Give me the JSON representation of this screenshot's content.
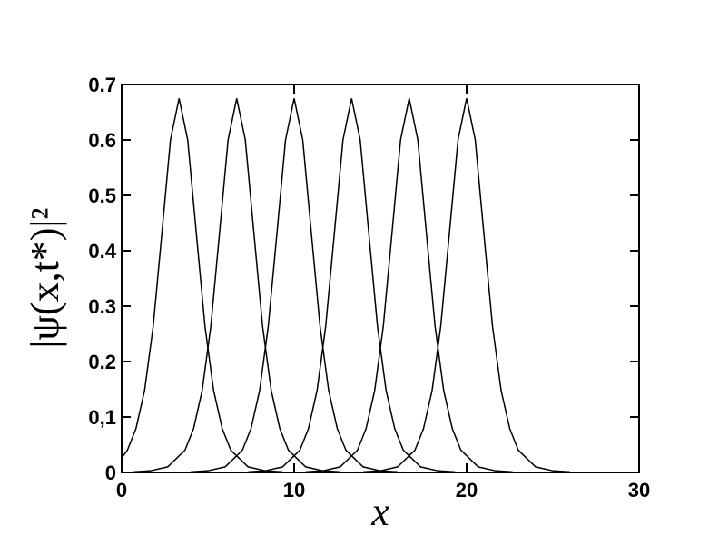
{
  "chart_data": {
    "type": "line",
    "xlabel": "x",
    "ylabel": "|ψ(x,t*)|²",
    "xlim": [
      0,
      30
    ],
    "ylim": [
      0,
      0.7
    ],
    "xticks": [
      0,
      10,
      20,
      30
    ],
    "yticks": [
      0,
      {
        "value": 0.1,
        "label": "0,1"
      },
      0.2,
      0.3,
      0.4,
      0.5,
      0.6,
      0.7
    ],
    "grid": false,
    "series": [
      {
        "color": "#000000",
        "x": [
          0,
          0.33,
          0.83,
          1.33,
          1.83,
          2.33,
          2.83,
          3.33,
          3.83,
          4.33,
          4.83,
          5.33,
          5.83,
          6.33,
          7.33,
          8.33,
          9.33
        ],
        "values": [
          0.026,
          0.04,
          0.079,
          0.148,
          0.264,
          0.431,
          0.6,
          0.675,
          0.6,
          0.431,
          0.264,
          0.148,
          0.079,
          0.04,
          0.01,
          0.003,
          0.001
        ]
      },
      {
        "color": "#000000",
        "x": [
          0.67,
          1.67,
          2.67,
          3.67,
          4.17,
          4.67,
          5.17,
          5.67,
          6.17,
          6.67,
          7.17,
          7.67,
          8.17,
          8.67,
          9.17,
          9.67,
          10.67,
          11.67,
          12.67
        ],
        "values": [
          0.001,
          0.003,
          0.01,
          0.04,
          0.079,
          0.148,
          0.264,
          0.431,
          0.6,
          0.675,
          0.6,
          0.431,
          0.264,
          0.148,
          0.079,
          0.04,
          0.01,
          0.003,
          0.001
        ]
      },
      {
        "color": "#000000",
        "x": [
          4,
          5,
          6,
          7,
          7.5,
          8,
          8.5,
          9,
          9.5,
          10,
          10.5,
          11,
          11.5,
          12,
          12.5,
          13,
          14,
          15,
          16
        ],
        "values": [
          0.001,
          0.003,
          0.01,
          0.04,
          0.079,
          0.148,
          0.264,
          0.431,
          0.6,
          0.675,
          0.6,
          0.431,
          0.264,
          0.148,
          0.079,
          0.04,
          0.01,
          0.003,
          0.001
        ]
      },
      {
        "color": "#000000",
        "x": [
          7.33,
          8.33,
          9.33,
          10.33,
          10.83,
          11.33,
          11.83,
          12.33,
          12.83,
          13.33,
          13.83,
          14.33,
          14.83,
          15.33,
          15.83,
          16.33,
          17.33,
          18.33,
          19.33
        ],
        "values": [
          0.001,
          0.003,
          0.01,
          0.04,
          0.079,
          0.148,
          0.264,
          0.431,
          0.6,
          0.675,
          0.6,
          0.431,
          0.264,
          0.148,
          0.079,
          0.04,
          0.01,
          0.003,
          0.001
        ]
      },
      {
        "color": "#000000",
        "x": [
          10.67,
          11.67,
          12.67,
          13.67,
          14.17,
          14.67,
          15.17,
          15.67,
          16.17,
          16.67,
          17.17,
          17.67,
          18.17,
          18.67,
          19.17,
          19.67,
          20.67,
          21.67,
          22.67
        ],
        "values": [
          0.001,
          0.003,
          0.01,
          0.04,
          0.079,
          0.148,
          0.264,
          0.431,
          0.6,
          0.675,
          0.6,
          0.431,
          0.264,
          0.148,
          0.079,
          0.04,
          0.01,
          0.003,
          0.001
        ]
      },
      {
        "color": "#000000",
        "x": [
          14,
          15,
          16,
          17,
          17.5,
          18,
          18.5,
          19,
          19.5,
          20,
          20.5,
          21,
          21.5,
          22,
          22.5,
          23,
          24,
          25,
          26
        ],
        "values": [
          0.001,
          0.003,
          0.01,
          0.04,
          0.079,
          0.148,
          0.264,
          0.431,
          0.6,
          0.675,
          0.6,
          0.431,
          0.264,
          0.148,
          0.079,
          0.04,
          0.01,
          0.003,
          0.001
        ]
      }
    ]
  }
}
